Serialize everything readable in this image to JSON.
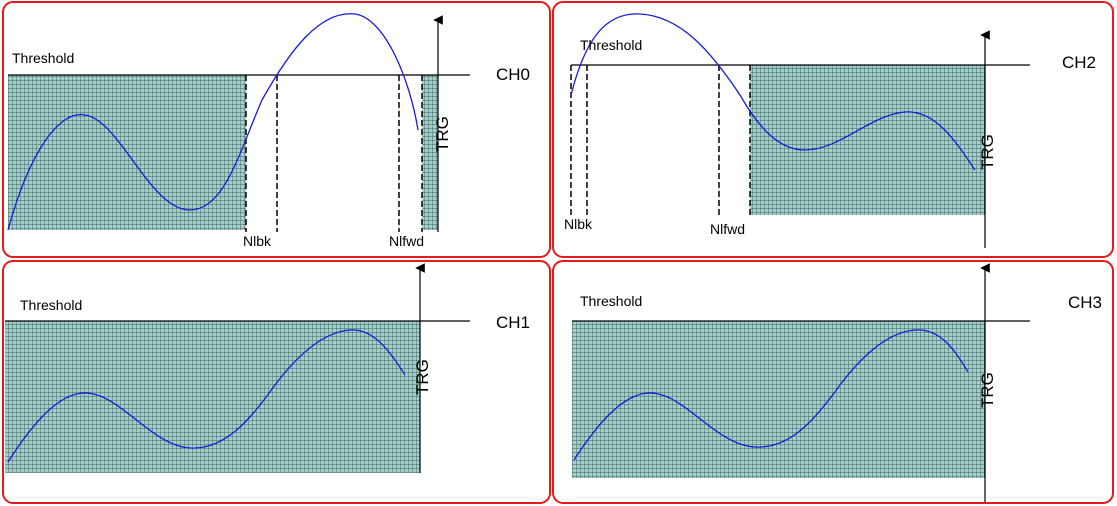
{
  "colors": {
    "frame": "#e21b1b",
    "curve": "#1a1ad6",
    "grid_fill": "#9fd1cc",
    "grid_line": "#2b3b3a",
    "axis": "#000000"
  },
  "panels": [
    {
      "id": "ch0",
      "channel_label": "CH0",
      "threshold_label": "Threshold",
      "trigger_label": "TRG",
      "markers": [
        {
          "label": "Nlbk"
        },
        {
          "label": "Nlfwd"
        }
      ]
    },
    {
      "id": "ch2",
      "channel_label": "CH2",
      "threshold_label": "Threshold",
      "trigger_label": "TRG",
      "markers": [
        {
          "label": "Nlbk"
        },
        {
          "label": "Nlfwd"
        }
      ]
    },
    {
      "id": "ch1",
      "channel_label": "CH1",
      "threshold_label": "Threshold",
      "trigger_label": "TRG",
      "markers": []
    },
    {
      "id": "ch3",
      "channel_label": "CH3",
      "threshold_label": "Threshold",
      "trigger_label": "TRG",
      "markers": []
    }
  ]
}
